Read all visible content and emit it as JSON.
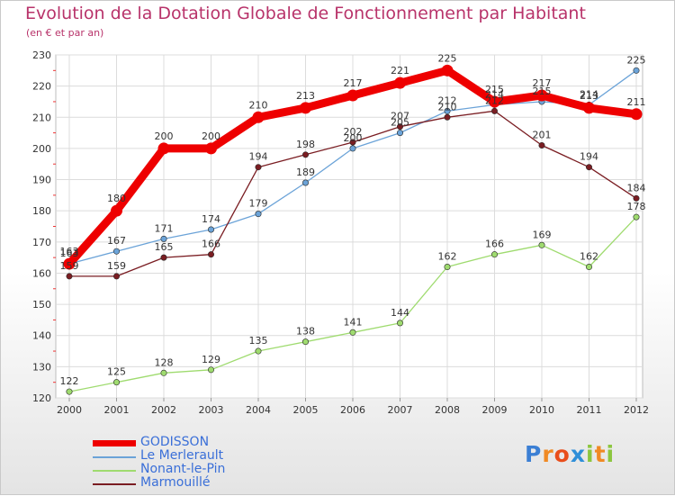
{
  "chart_data": {
    "type": "line",
    "title": "Evolution de la Dotation Globale de Fonctionnement par Habitant",
    "subtitle": "(en € et par an)",
    "xlabel": "",
    "ylabel": "",
    "categories": [
      "2000",
      "2001",
      "2002",
      "2003",
      "2004",
      "2005",
      "2006",
      "2007",
      "2008",
      "2009",
      "2010",
      "2011",
      "2012"
    ],
    "ylim": [
      120,
      230
    ],
    "yticks": [
      120,
      130,
      140,
      150,
      160,
      170,
      180,
      190,
      200,
      210,
      220,
      230
    ],
    "grid": true,
    "legend_position": "bottom-left",
    "series": [
      {
        "name": "GODISSON",
        "color": "#ee0000",
        "values": [
          163,
          180,
          200,
          200,
          210,
          213,
          217,
          221,
          225,
          215,
          217,
          213,
          211
        ]
      },
      {
        "name": "Le Merlerault",
        "color": "#6ba3d8",
        "values": [
          163,
          167,
          171,
          174,
          179,
          189,
          200,
          205,
          212,
          214,
          215,
          214,
          225
        ]
      },
      {
        "name": "Nonant-le-Pin",
        "color": "#9fdb6f",
        "values": [
          122,
          125,
          128,
          129,
          135,
          138,
          141,
          144,
          162,
          166,
          169,
          162,
          178
        ]
      },
      {
        "name": "Marmouillé",
        "color": "#7a1d22",
        "values": [
          159,
          159,
          165,
          166,
          194,
          198,
          202,
          207,
          210,
          212,
          201,
          194,
          184
        ]
      }
    ]
  },
  "logo": {
    "text": "Proxiti",
    "letters": [
      "P",
      "r",
      "o",
      "x",
      "i",
      "t",
      "i"
    ],
    "colors": [
      "#3b7fd4",
      "#f08a24",
      "#e94e1b",
      "#2f8fd8",
      "#8cc63f",
      "#f08a24",
      "#8cc63f"
    ]
  }
}
